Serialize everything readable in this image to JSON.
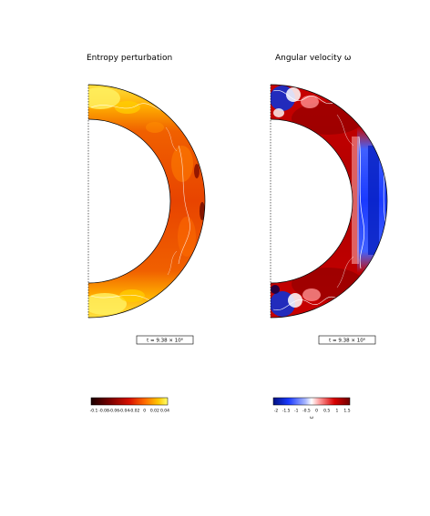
{
  "chart_data": [
    {
      "type": "heatmap",
      "title": "Entropy perturbation",
      "geometry": "meridional half-annulus (spherical shell)",
      "colormap": "black-red-orange-yellow",
      "colors": [
        "#1a0000",
        "#6a0000",
        "#c00000",
        "#e83000",
        "#ff7800",
        "#ffc000",
        "#ffff60"
      ],
      "dominant_value": "orange-red (mid-range) in interior, yellow near polar caps",
      "features": [
        "yellow cap near north pole",
        "yellow cap near south pole",
        "white contour lines",
        "dark patches at outer equatorial edge"
      ],
      "time_label": "t = 9.38 × 10⁶",
      "colorbar_ticks": [
        "-0.1",
        "-0.08",
        "-0.06",
        "-0.04",
        "-0.02",
        "0",
        "0.02",
        "0.04"
      ]
    },
    {
      "type": "heatmap",
      "title": "Angular velocity ω",
      "geometry": "meridional half-annulus (spherical shell)",
      "colormap": "blue-white-red (diverging)",
      "colors": [
        "#001080",
        "#2040ff",
        "#80a0ff",
        "#ffffff",
        "#ff8080",
        "#d00000",
        "#800000"
      ],
      "dominant_value": "dark red (fast rotation) at mid-latitudes, blue (slow) at equator and poles",
      "features": [
        "blue equatorial band",
        "blue polar tangles",
        "white contour lines"
      ],
      "time_label": "t = 9.38 × 10⁶",
      "colorbar_ticks": [
        "-2",
        "-1.5",
        "-1",
        "-0.5",
        "0",
        "0.5",
        "1",
        "1.5"
      ],
      "colorbar_label": "ω"
    }
  ]
}
